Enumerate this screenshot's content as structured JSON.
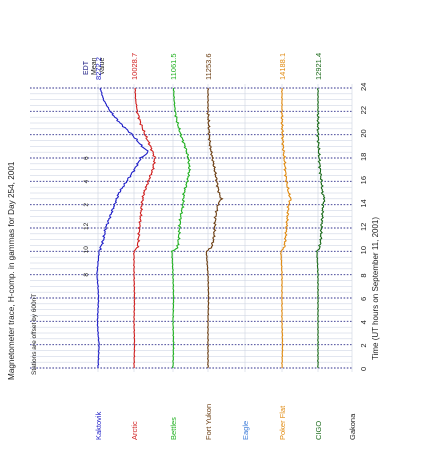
{
  "chart_data": {
    "type": "line",
    "title": "Magnetometer trace, H-comp. in gammas for Day 254, 2001",
    "scale_label": "Stations are offset by 600nT",
    "xlabel": "Time (UT hours on September 11, 2001)",
    "x_ticks_ut": [
      "0",
      "2",
      "4",
      "6",
      "8",
      "10",
      "12",
      "14",
      "16",
      "18",
      "20",
      "22",
      "24"
    ],
    "edt_label": "EDT",
    "edt_ticks": [
      "8",
      "10",
      "12",
      "2",
      "4",
      "6"
    ],
    "mean_header": "Mean\nValue",
    "colors": {
      "gridline_hourly": "#9aa8c8",
      "gridline_bold": "#1a1a80",
      "text": "#222222"
    },
    "series": [
      {
        "name": "Kaktovik",
        "mean_value": "8272.2",
        "color": "#1f1fc8",
        "x": [
          0,
          1,
          2,
          3,
          4,
          5,
          6,
          7,
          8,
          9,
          10,
          10.5,
          11,
          12,
          13,
          14,
          15,
          16,
          17,
          18,
          18.5,
          19,
          20,
          21,
          22,
          23,
          24
        ],
        "y": [
          0,
          1,
          2,
          0,
          -1,
          0,
          1,
          0,
          -2,
          0,
          2,
          6,
          10,
          14,
          22,
          30,
          38,
          52,
          66,
          78,
          92,
          80,
          62,
          40,
          22,
          10,
          4
        ]
      },
      {
        "name": "Arctic",
        "mean_value": "10028.7",
        "color": "#d01f1f",
        "x": [
          0,
          2,
          4,
          6,
          8,
          10,
          10.3,
          11,
          12,
          13,
          14,
          15,
          16,
          17,
          18,
          19,
          20,
          21,
          22,
          23,
          24
        ],
        "y": [
          0,
          1,
          0,
          1,
          0,
          0,
          6,
          8,
          10,
          12,
          14,
          18,
          26,
          34,
          38,
          30,
          20,
          12,
          6,
          3,
          2
        ]
      },
      {
        "name": "Bettles",
        "mean_value": "11061.5",
        "color": "#1fb01f",
        "x": [
          0,
          2,
          4,
          6,
          8,
          10,
          10.3,
          11,
          12,
          13,
          14,
          15,
          16,
          17,
          18,
          19,
          20,
          21,
          22,
          23,
          24
        ],
        "y": [
          0,
          1,
          0,
          1,
          0,
          -2,
          8,
          10,
          12,
          14,
          18,
          20,
          26,
          30,
          28,
          22,
          14,
          8,
          4,
          2,
          1
        ]
      },
      {
        "name": "Fort Yukon",
        "mean_value": "11253.6",
        "color": "#6a3c10",
        "x": [
          0,
          2,
          4,
          6,
          8,
          10,
          10.3,
          11,
          12,
          13,
          14,
          14.5,
          15,
          16,
          17,
          18,
          19,
          20,
          21,
          22,
          23,
          24
        ],
        "y": [
          0,
          0,
          0,
          1,
          0,
          -3,
          6,
          10,
          12,
          14,
          18,
          24,
          20,
          16,
          12,
          8,
          4,
          2,
          1,
          0,
          0,
          0
        ]
      },
      {
        "name": "Eagle",
        "mean_value": "",
        "color": "#3b7ad8",
        "x": [],
        "y": []
      },
      {
        "name": "Poker Flat",
        "mean_value": "14188.1",
        "color": "#e08a10",
        "x": [
          0,
          2,
          4,
          6,
          8,
          10,
          10.3,
          11,
          12,
          13,
          14,
          14.5,
          15,
          16,
          17,
          18,
          19,
          20,
          21,
          22,
          23,
          24
        ],
        "y": [
          0,
          1,
          0,
          0,
          0,
          -2,
          4,
          6,
          8,
          10,
          12,
          16,
          12,
          8,
          6,
          4,
          2,
          1,
          0,
          0,
          0,
          0
        ]
      },
      {
        "name": "CIGO",
        "mean_value": "12921.4",
        "color": "#1a6a1a",
        "x": [
          0,
          2,
          4,
          6,
          8,
          10,
          10.3,
          11,
          12,
          13,
          14,
          14.5,
          15,
          16,
          17,
          18,
          19,
          20,
          21,
          22,
          23,
          24
        ],
        "y": [
          0,
          0,
          0,
          0,
          0,
          -2,
          3,
          5,
          6,
          8,
          9,
          12,
          8,
          6,
          4,
          2,
          1,
          0,
          0,
          0,
          0,
          0
        ]
      },
      {
        "name": "Gakona",
        "mean_value": "",
        "color": "#222222",
        "x": [],
        "y": []
      }
    ],
    "xlim": [
      0,
      24
    ]
  }
}
